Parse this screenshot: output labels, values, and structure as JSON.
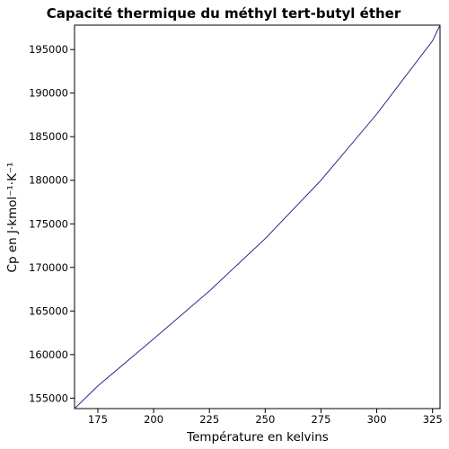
{
  "chart_data": {
    "type": "line",
    "title": "Capacité thermique du méthyl tert-butyl éther",
    "xlabel": "Température en kelvins",
    "ylabel": "Cp en J·kmol⁻¹·K⁻¹",
    "xlim": [
      164.55,
      328.35
    ],
    "ylim": [
      153800,
      197800
    ],
    "xticks": [
      "175",
      "200",
      "225",
      "250",
      "275",
      "300",
      "325"
    ],
    "yticks": [
      "155000",
      "160000",
      "165000",
      "170000",
      "175000",
      "180000",
      "185000",
      "190000",
      "195000"
    ],
    "grid": false,
    "legend": "none",
    "line_color": "#2b2b8c",
    "series": [
      {
        "x": [
          164.55,
          175,
          200,
          225,
          250,
          275,
          300,
          325,
          328.35
        ],
        "y": [
          153800,
          156400,
          161800,
          167300,
          173300,
          180000,
          187600,
          196000,
          197800
        ]
      }
    ]
  }
}
